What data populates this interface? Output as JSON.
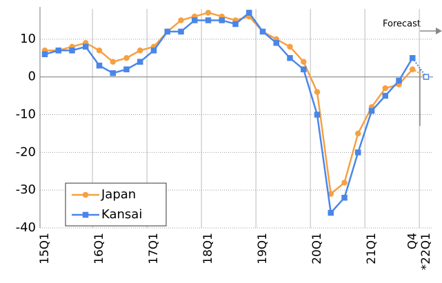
{
  "chart_data": {
    "type": "line",
    "categories": [
      "15Q1",
      null,
      null,
      null,
      "16Q1",
      null,
      null,
      null,
      "17Q1",
      null,
      null,
      null,
      "18Q1",
      null,
      null,
      null,
      "19Q1",
      null,
      null,
      null,
      "20Q1",
      null,
      null,
      null,
      "21Q1",
      null,
      null,
      "Q4",
      "*22Q1"
    ],
    "series": [
      {
        "name": "Japan",
        "color": "#f5a043",
        "marker": "circle",
        "values": [
          7,
          7,
          8,
          9,
          7,
          4,
          5,
          7,
          8,
          12,
          15,
          16,
          17,
          16,
          15,
          16,
          12,
          10,
          8,
          4,
          -4,
          -31,
          -28,
          -15,
          -8,
          -3,
          -2,
          2,
          0
        ]
      },
      {
        "name": "Kansai",
        "color": "#4a86e8",
        "marker": "square",
        "values": [
          6,
          7,
          7,
          8,
          3,
          1,
          2,
          4,
          7,
          12,
          12,
          15,
          15,
          15,
          14,
          17,
          12,
          9,
          5,
          2,
          -10,
          -36,
          -32,
          -20,
          -9,
          -5,
          -1,
          5,
          0
        ]
      }
    ],
    "annotation": "Forecast",
    "ylim": [
      -40,
      18
    ],
    "yticks": [
      -40,
      -30,
      -20,
      -10,
      0,
      10
    ],
    "grid": true,
    "legend": "bottom-left"
  }
}
